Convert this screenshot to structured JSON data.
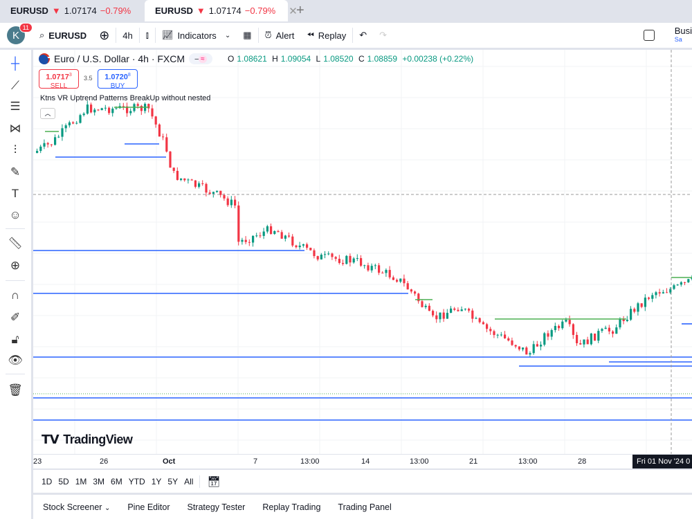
{
  "tabs": [
    {
      "symbol": "EURUSD",
      "arrow": "▼",
      "price": "1.07174",
      "change": "−0.79%"
    },
    {
      "symbol": "EURUSD",
      "arrow": "▼",
      "price": "1.07174",
      "change": "−0.79%"
    }
  ],
  "toolbar": {
    "avatar_letter": "K",
    "notifications": "11",
    "symbol": "EURUSD",
    "interval": "4h",
    "indicators": "Indicators",
    "alert": "Alert",
    "replay": "Replay",
    "account": "Busi",
    "account_sub": "Sa"
  },
  "legend": {
    "title": "Euro / U.S. Dollar · 4h · FXCM",
    "o_label": "O",
    "o": "1.08621",
    "h_label": "H",
    "h": "1.09054",
    "l_label": "L",
    "l": "1.08520",
    "c_label": "C",
    "c": "1.08859",
    "change": "+0.00238 (+0.22%)"
  },
  "trade": {
    "sell_price": "1.0717",
    "sell_sup": "3",
    "sell_label": "SELL",
    "spread": "3.5",
    "buy_price": "1.0720",
    "buy_sup": "8",
    "buy_label": "BUY"
  },
  "indicator_name": "Ktns VR Uptrend Patterns BreakUp without nested",
  "logo": "TradingView",
  "time_axis": [
    "23",
    "26",
    "Oct",
    "7",
    "13:00",
    "14",
    "13:00",
    "21",
    "13:00",
    "28"
  ],
  "crosshair_time": "Fri 01 Nov '24  0",
  "ranges": [
    "1D",
    "5D",
    "1M",
    "3M",
    "6M",
    "YTD",
    "1Y",
    "5Y",
    "All"
  ],
  "bottom_tabs": [
    "Stock Screener",
    "Pine Editor",
    "Strategy Tester",
    "Replay Trading",
    "Trading Panel"
  ],
  "colors": {
    "up": "#089981",
    "down": "#f23645",
    "support": "#2962ff",
    "resistance": "#4caf50",
    "accent": "#2962ff"
  }
}
